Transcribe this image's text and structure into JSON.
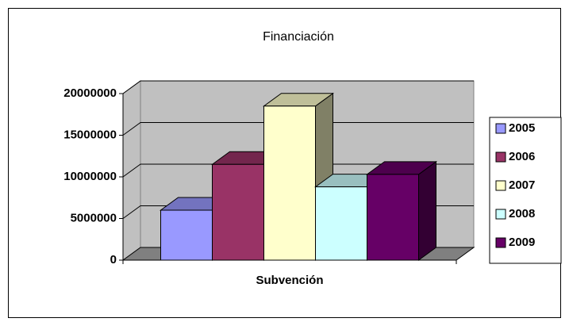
{
  "chart_data": {
    "type": "bar3d",
    "title": "Financiación",
    "categories": [
      "Subvención"
    ],
    "series": [
      {
        "name": "2005",
        "color": "#9999ff",
        "values": [
          6000000
        ]
      },
      {
        "name": "2006",
        "color": "#993366",
        "values": [
          11500000
        ]
      },
      {
        "name": "2007",
        "color": "#ffffcc",
        "values": [
          18500000
        ]
      },
      {
        "name": "2008",
        "color": "#ccffff",
        "values": [
          8800000
        ]
      },
      {
        "name": "2009",
        "color": "#660066",
        "values": [
          10300000
        ]
      }
    ],
    "ylim": [
      0,
      20000000
    ],
    "yticks": [
      0,
      5000000,
      10000000,
      15000000,
      20000000
    ],
    "grid": true,
    "legend": "right"
  }
}
